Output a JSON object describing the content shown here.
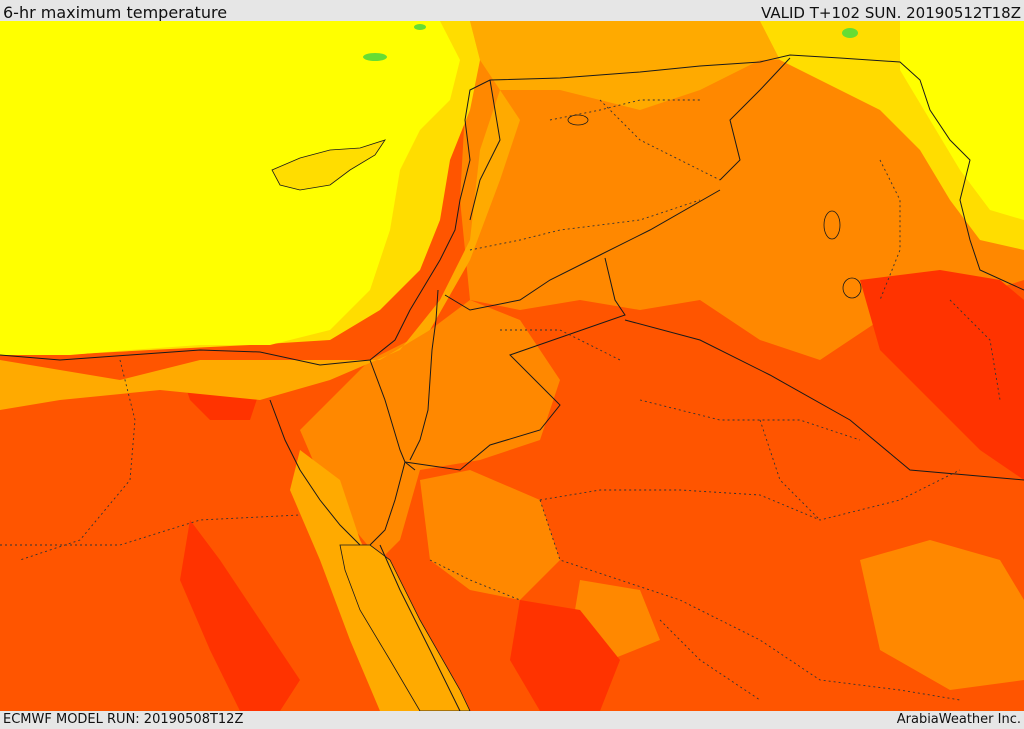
{
  "header": {
    "title": "6-hr maximum temperature",
    "valid": "VALID T+102 SUN. 20190512T18Z"
  },
  "footer": {
    "model_run": "ECMWF MODEL RUN: 20190508T12Z",
    "credit": "ArabiaWeather Inc."
  },
  "map": {
    "colors": {
      "level_1": "#ffff00",
      "level_2": "#ffdd00",
      "level_3": "#ffaa00",
      "level_4": "#ff8800",
      "level_5": "#ff5500",
      "level_6": "#ff3300",
      "level_7": "#ff1f00",
      "accent_green": "#66dd33",
      "border_line": "#1a1a1a"
    }
  }
}
